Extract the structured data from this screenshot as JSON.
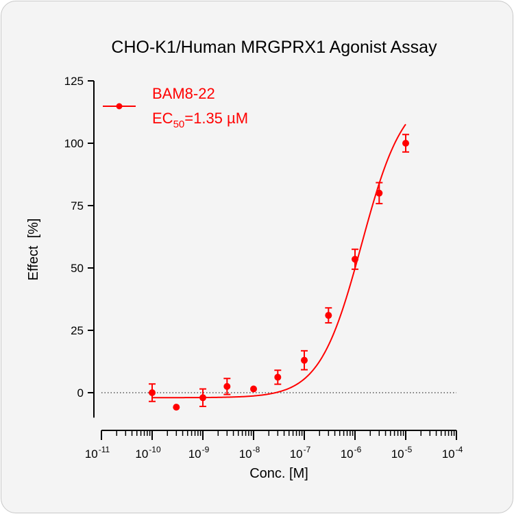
{
  "chart_data": {
    "type": "scatter",
    "title": "CHO-K1/Human MRGPRX1 Agonist Assay",
    "xlabel": "Conc. [M]",
    "ylabel": "Effect  [%]",
    "x_scale": "log",
    "xlim": [
      1e-11,
      0.0001
    ],
    "ylim": [
      -10,
      125
    ],
    "y_ticks": [
      0,
      25,
      50,
      75,
      100,
      125
    ],
    "x_tick_labels": [
      {
        "base": "10",
        "exp": "-11"
      },
      {
        "base": "10",
        "exp": "-10"
      },
      {
        "base": "10",
        "exp": "-9"
      },
      {
        "base": "10",
        "exp": "-8"
      },
      {
        "base": "10",
        "exp": "-7"
      },
      {
        "base": "10",
        "exp": "-6"
      },
      {
        "base": "10",
        "exp": "-5"
      },
      {
        "base": "10",
        "exp": "-4"
      }
    ],
    "series": [
      {
        "name": "BAM8-22",
        "color": "#ff0000",
        "points": [
          {
            "x": 1e-10,
            "y": 0,
            "err": 3.5
          },
          {
            "x": 3e-10,
            "y": -5.8,
            "err": 0
          },
          {
            "x": 1e-09,
            "y": -2,
            "err": 3.5
          },
          {
            "x": 3e-09,
            "y": 2.5,
            "err": 3.2
          },
          {
            "x": 1e-08,
            "y": 1.5,
            "err": 0
          },
          {
            "x": 3e-08,
            "y": 6.2,
            "err": 2.8
          },
          {
            "x": 1e-07,
            "y": 13,
            "err": 3.8
          },
          {
            "x": 3e-07,
            "y": 31,
            "err": 3.0
          },
          {
            "x": 1e-06,
            "y": 53.5,
            "err": 4.0
          },
          {
            "x": 3e-06,
            "y": 80,
            "err": 4.2
          },
          {
            "x": 1e-05,
            "y": 100,
            "err": 3.5
          }
        ],
        "fit": {
          "bottom": -2,
          "top": 121,
          "ec50": 1.35e-06,
          "hill": 1.05,
          "x_range": [
            1e-10,
            1e-05
          ]
        }
      }
    ],
    "reference_line": {
      "y": 0,
      "style": "dotted"
    },
    "legend": {
      "placement": "top-left",
      "label": "BAM8-22",
      "ec50_prefix": "EC",
      "ec50_sub": "50",
      "ec50_value": "=1.35 µM"
    }
  }
}
